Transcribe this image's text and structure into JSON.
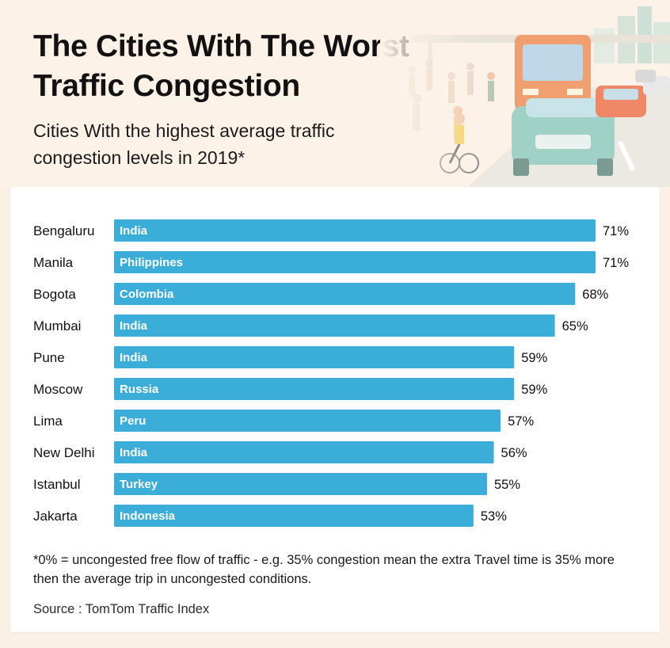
{
  "header": {
    "title": "The Cities With The Worst Traffic Congestion",
    "subtitle": "Cities With the highest average traffic congestion levels in 2019*"
  },
  "chart_data": {
    "type": "bar",
    "orientation": "horizontal",
    "categories": [
      "Bengaluru",
      "Manila",
      "Bogota",
      "Mumbai",
      "Pune",
      "Moscow",
      "Lima",
      "New Delhi",
      "Istanbul",
      "Jakarta"
    ],
    "bar_labels": [
      "India",
      "Philippines",
      "Colombia",
      "India",
      "India",
      "Russia",
      "Peru",
      "India",
      "Turkey",
      "Indonesia"
    ],
    "values": [
      71,
      71,
      68,
      65,
      59,
      59,
      57,
      56,
      55,
      53
    ],
    "value_suffix": "%",
    "bar_color": "#3aaed8",
    "grid": false
  },
  "footnote": "*0% = uncongested free flow of traffic - e.g. 35% congestion mean the extra Travel time is 35% more then the average trip in uncongested conditions.",
  "source": "Source : TomTom Traffic Index",
  "icons": {
    "header_illustration": "street-traffic-illustration"
  }
}
